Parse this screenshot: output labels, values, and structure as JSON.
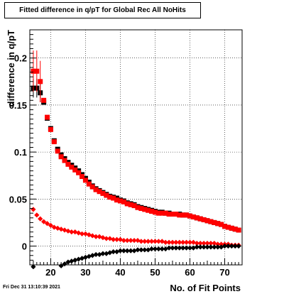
{
  "header": {
    "title": "Fitted difference in q/pT for Global Rec All NoHits"
  },
  "footer": {
    "timestamp": "Fri Dec 31 13:10:39 2021"
  },
  "chart_data": {
    "type": "scatter",
    "title": "Fitted difference in q/pT for Global Rec All NoHits",
    "xlabel": "No. of Fit Points",
    "ylabel": "difference in q/pT",
    "xlim": [
      14,
      75
    ],
    "ylim": [
      -0.02,
      0.23
    ],
    "xticks": [
      20,
      30,
      40,
      50,
      60,
      70
    ],
    "yticks": [
      0,
      0.05,
      0.1,
      0.15,
      0.2
    ],
    "ytick_labels": [
      "0",
      "0.05",
      "0.1",
      "0.15",
      "0.2"
    ],
    "grid": true,
    "colors": {
      "black": "#000000",
      "red": "#ff0000"
    },
    "series": [
      {
        "color": "#000000",
        "marker": "square",
        "x": [
          15,
          16,
          17,
          18,
          19,
          20,
          21,
          22,
          23,
          24,
          25,
          26,
          27,
          28,
          29,
          30,
          31,
          32,
          33,
          34,
          35,
          36,
          37,
          38,
          39,
          40,
          41,
          42,
          43,
          44,
          45,
          46,
          47,
          48,
          49,
          50,
          51,
          52,
          53,
          54,
          55,
          56,
          57,
          58,
          59,
          60,
          61,
          62,
          63,
          64,
          65,
          66,
          67,
          68,
          69,
          70,
          71,
          72,
          73,
          74
        ],
        "y": [
          0.168,
          0.168,
          0.163,
          0.153,
          0.136,
          0.125,
          0.112,
          0.103,
          0.097,
          0.093,
          0.089,
          0.086,
          0.083,
          0.08,
          0.076,
          0.072,
          0.068,
          0.064,
          0.061,
          0.059,
          0.057,
          0.055,
          0.053,
          0.052,
          0.051,
          0.049,
          0.048,
          0.046,
          0.045,
          0.044,
          0.042,
          0.041,
          0.04,
          0.039,
          0.038,
          0.037,
          0.036,
          0.036,
          0.035,
          0.035,
          0.034,
          0.034,
          0.034,
          0.033,
          0.033,
          0.032,
          0.031,
          0.03,
          0.029,
          0.028,
          0.027,
          0.026,
          0.025,
          0.024,
          0.023,
          0.021,
          0.02,
          0.019,
          0.018,
          0.017
        ]
      },
      {
        "color": "#ff0000",
        "marker": "square",
        "x": [
          15,
          16,
          17,
          18,
          19,
          20,
          21,
          22,
          23,
          24,
          25,
          26,
          27,
          28,
          29,
          30,
          31,
          32,
          33,
          34,
          35,
          36,
          37,
          38,
          39,
          40,
          41,
          42,
          43,
          44,
          45,
          46,
          47,
          48,
          49,
          50,
          51,
          52,
          53,
          54,
          55,
          56,
          57,
          58,
          59,
          60,
          61,
          62,
          63,
          64,
          65,
          66,
          67,
          68,
          69,
          70,
          71,
          72,
          73,
          74
        ],
        "y": [
          0.186,
          0.186,
          0.175,
          0.155,
          0.137,
          0.124,
          0.111,
          0.101,
          0.095,
          0.091,
          0.087,
          0.084,
          0.081,
          0.078,
          0.074,
          0.07,
          0.066,
          0.063,
          0.06,
          0.058,
          0.056,
          0.054,
          0.052,
          0.051,
          0.049,
          0.048,
          0.047,
          0.045,
          0.044,
          0.043,
          0.041,
          0.04,
          0.039,
          0.038,
          0.037,
          0.036,
          0.035,
          0.035,
          0.035,
          0.034,
          0.034,
          0.034,
          0.033,
          0.033,
          0.033,
          0.032,
          0.031,
          0.03,
          0.029,
          0.028,
          0.027,
          0.026,
          0.025,
          0.024,
          0.023,
          0.021,
          0.02,
          0.019,
          0.018,
          0.017
        ]
      },
      {
        "color": "#ff0000",
        "marker": "diamond",
        "x": [
          15,
          16,
          17,
          18,
          19,
          20,
          21,
          22,
          23,
          24,
          25,
          26,
          27,
          28,
          29,
          30,
          31,
          32,
          33,
          34,
          35,
          36,
          37,
          38,
          39,
          40,
          41,
          42,
          43,
          44,
          45,
          46,
          47,
          48,
          49,
          50,
          51,
          52,
          53,
          54,
          55,
          56,
          57,
          58,
          59,
          60,
          61,
          62,
          63,
          64,
          65,
          66,
          67,
          68,
          69,
          70,
          71,
          72,
          73,
          74
        ],
        "y": [
          0.039,
          0.033,
          0.029,
          0.026,
          0.024,
          0.022,
          0.02,
          0.019,
          0.018,
          0.017,
          0.016,
          0.015,
          0.015,
          0.014,
          0.013,
          0.013,
          0.012,
          0.011,
          0.01,
          0.01,
          0.009,
          0.008,
          0.008,
          0.007,
          0.007,
          0.007,
          0.006,
          0.006,
          0.006,
          0.006,
          0.006,
          0.005,
          0.005,
          0.005,
          0.005,
          0.005,
          0.005,
          0.005,
          0.004,
          0.004,
          0.004,
          0.004,
          0.004,
          0.004,
          0.004,
          0.004,
          0.004,
          0.003,
          0.003,
          0.003,
          0.003,
          0.003,
          0.003,
          0.002,
          0.002,
          0.002,
          0.002,
          0.001,
          0.001,
          0.001
        ]
      },
      {
        "color": "#000000",
        "marker": "diamond",
        "x": [
          15,
          23,
          24,
          25,
          26,
          27,
          28,
          29,
          30,
          31,
          32,
          33,
          34,
          35,
          36,
          37,
          38,
          39,
          40,
          41,
          42,
          43,
          44,
          45,
          46,
          47,
          48,
          49,
          50,
          51,
          52,
          53,
          54,
          55,
          56,
          57,
          58,
          59,
          60,
          61,
          62,
          63,
          64,
          65,
          66,
          67,
          68,
          69,
          70,
          71,
          72,
          73,
          74
        ],
        "y": [
          -0.022,
          -0.021,
          -0.019,
          -0.017,
          -0.016,
          -0.015,
          -0.014,
          -0.013,
          -0.012,
          -0.011,
          -0.01,
          -0.009,
          -0.009,
          -0.008,
          -0.008,
          -0.007,
          -0.006,
          -0.006,
          -0.005,
          -0.005,
          -0.005,
          -0.005,
          -0.005,
          -0.004,
          -0.004,
          -0.004,
          -0.004,
          -0.003,
          -0.003,
          -0.003,
          -0.003,
          -0.003,
          -0.002,
          -0.002,
          -0.002,
          -0.002,
          -0.002,
          -0.002,
          -0.002,
          -0.002,
          -0.001,
          -0.001,
          -0.001,
          -0.001,
          -0.001,
          -0.001,
          -0.001,
          -0.001,
          0.0,
          0.0,
          0.0,
          0.0,
          0.0
        ]
      }
    ]
  }
}
